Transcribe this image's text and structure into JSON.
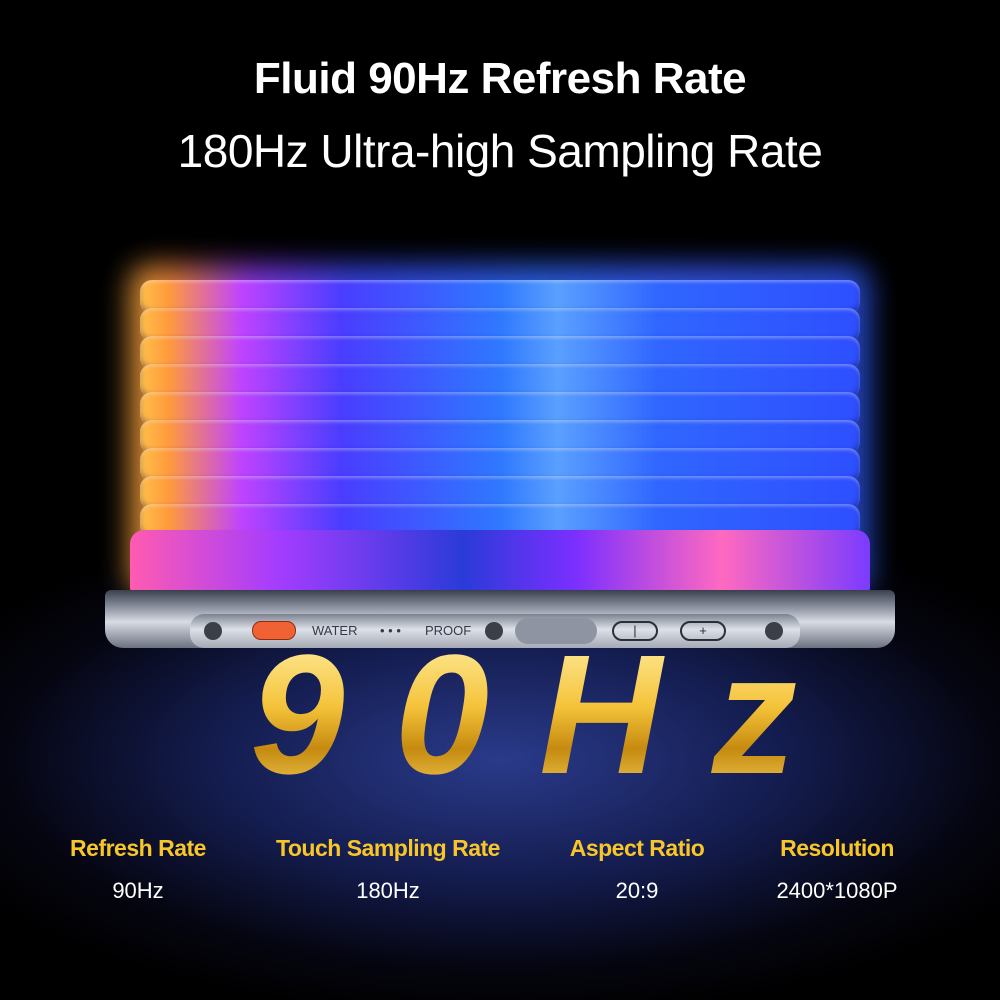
{
  "header": {
    "title": "Fluid 90Hz Refresh Rate",
    "subtitle": "180Hz Ultra-high Sampling Rate"
  },
  "phone": {
    "side_label_left": "WATER",
    "side_label_dots": "• • •",
    "side_label_right": "PROOF",
    "button_minus": "|",
    "button_plus": "+"
  },
  "hero": {
    "big_text": "90Hz"
  },
  "specs": [
    {
      "label": "Refresh Rate",
      "value": "90Hz"
    },
    {
      "label": "Touch Sampling Rate",
      "value": "180Hz"
    },
    {
      "label": "Aspect Ratio",
      "value": "20:9"
    },
    {
      "label": "Resolution",
      "value": "2400*1080P"
    }
  ],
  "colors": {
    "accent_gold": "#f8c628",
    "background": "#000000",
    "button_orange": "#f06233"
  }
}
